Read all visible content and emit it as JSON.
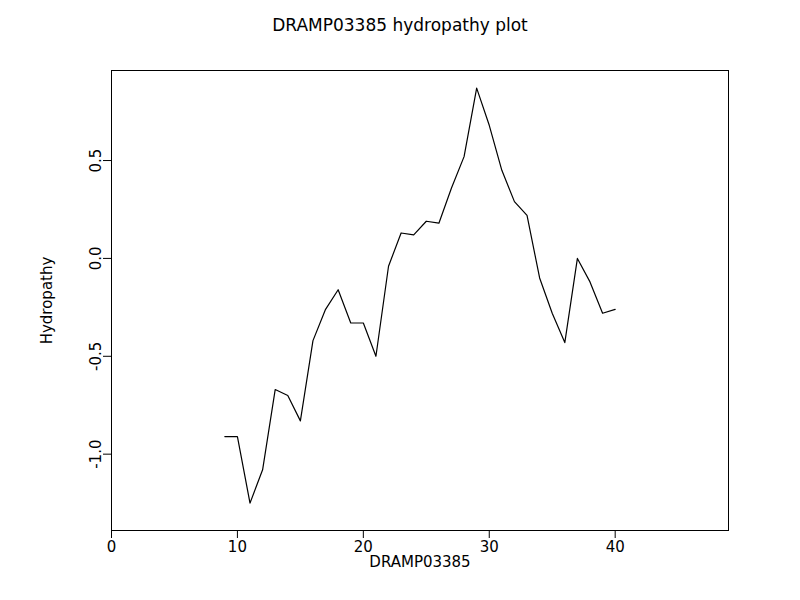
{
  "chart_data": {
    "type": "line",
    "title": "DRAMP03385 hydropathy plot",
    "x_label": "DRAMP03385",
    "y_label": "Hydropathy",
    "x": [
      9,
      10,
      11,
      12,
      13,
      14,
      15,
      16,
      17,
      18,
      19,
      20,
      21,
      22,
      23,
      24,
      25,
      26,
      27,
      28,
      29,
      30,
      31,
      32,
      33,
      34,
      35,
      36,
      37,
      38,
      39,
      40
    ],
    "values": [
      -0.91,
      -0.91,
      -1.25,
      -1.08,
      -0.67,
      -0.7,
      -0.83,
      -0.42,
      -0.26,
      -0.16,
      -0.33,
      -0.33,
      -0.5,
      -0.04,
      0.13,
      0.12,
      0.19,
      0.18,
      0.36,
      0.52,
      0.87,
      0.68,
      0.45,
      0.29,
      0.22,
      -0.1,
      -0.28,
      -0.43,
      0.0,
      -0.12,
      -0.28,
      -0.26
    ],
    "color": "#000000",
    "xlim": [
      0,
      49
    ],
    "xticks": [
      0,
      10,
      20,
      30,
      40
    ],
    "ylim": [
      -1.39,
      0.96
    ],
    "yticks": [
      {
        "value": -1.0,
        "label": "-1.0"
      },
      {
        "value": -0.5,
        "label": "-0.5"
      },
      {
        "value": 0.0,
        "label": "0.0"
      },
      {
        "value": 0.5,
        "label": "0.5"
      }
    ],
    "grid": false
  }
}
